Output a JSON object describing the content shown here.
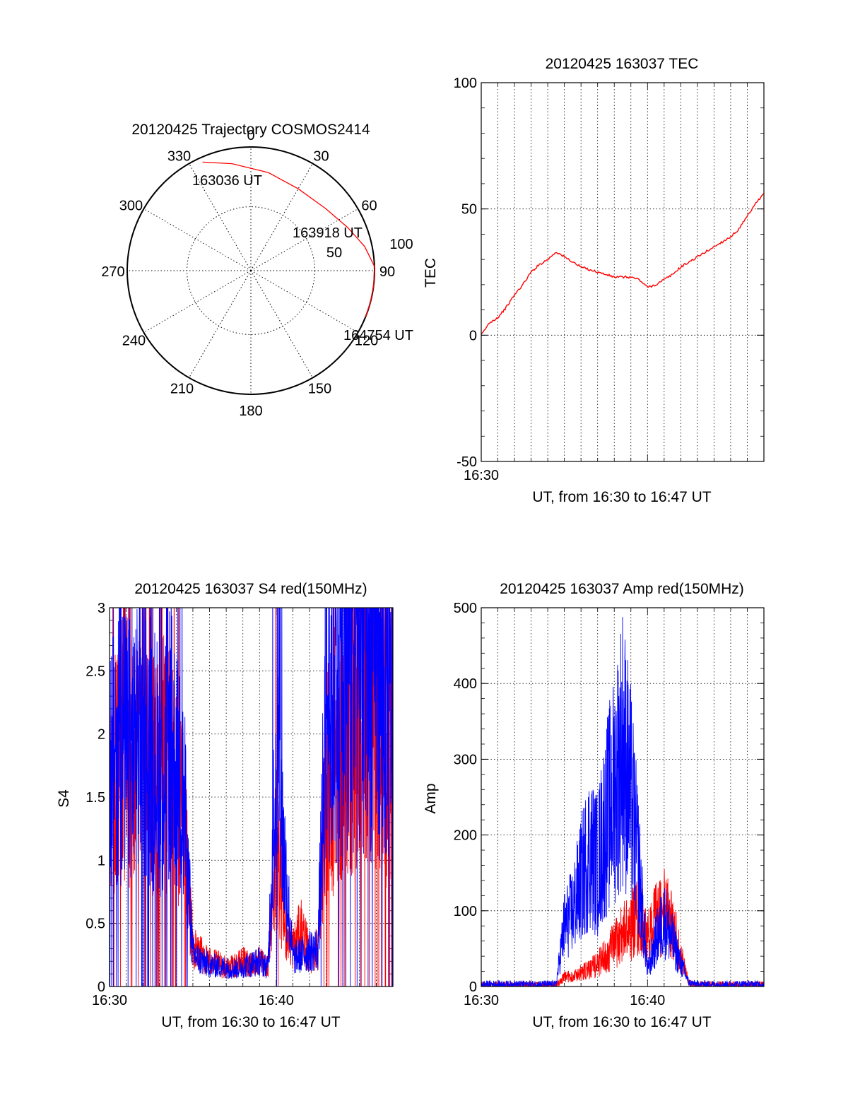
{
  "chart_data": [
    {
      "type": "polar",
      "title": "20120425 Trajectory COSMOS2414",
      "azimuth_labels": [
        "0",
        "30",
        "60",
        "90",
        "120",
        "150",
        "180",
        "210",
        "240",
        "270",
        "300",
        "330"
      ],
      "radial_labels": [
        "50",
        "100"
      ],
      "grid": true,
      "series": [
        {
          "color": "#ff0000",
          "points": [
            {
              "az": 336,
              "zen": 93
            },
            {
              "az": 350,
              "zen": 85
            },
            {
              "az": 10,
              "zen": 78
            },
            {
              "az": 30,
              "zen": 74
            },
            {
              "az": 50,
              "zen": 76
            },
            {
              "az": 66,
              "zen": 83
            },
            {
              "az": 78,
              "zen": 91
            },
            {
              "az": 88,
              "zen": 98
            },
            {
              "az": 97,
              "zen": 104
            },
            {
              "az": 105,
              "zen": 108
            },
            {
              "az": 112,
              "zen": 113
            }
          ]
        }
      ],
      "annotations": [
        {
          "text": "163036 UT",
          "az": 336,
          "zen": 93
        },
        {
          "text": "163918 UT",
          "az": 60,
          "zen": 80
        },
        {
          "text": "164754 UT",
          "az": 112,
          "zen": 113
        }
      ]
    },
    {
      "type": "line",
      "title": "20120425 163037 TEC",
      "xlabel": "UT, from 16:30 to 16:47 UT",
      "ylabel": "TEC",
      "xlim": [
        0,
        17
      ],
      "ylim": [
        -50,
        100
      ],
      "yticks": [
        "-50",
        "0",
        "50",
        "100"
      ],
      "xtick_labels": [
        "16:30"
      ],
      "grid": true,
      "series": [
        {
          "color": "#ff0000",
          "x": [
            0,
            0.5,
            1,
            1.5,
            2,
            2.5,
            3,
            3.5,
            4,
            4.5,
            5,
            5.5,
            6,
            6.5,
            7,
            7.5,
            8,
            8.5,
            9,
            9.5,
            10,
            10.5,
            11,
            11.5,
            12,
            12.5,
            13,
            13.5,
            14,
            14.5,
            15,
            15.5,
            16,
            16.5,
            17
          ],
          "y": [
            0,
            5,
            7,
            11,
            16,
            20,
            25,
            28,
            30,
            33,
            31,
            29,
            27,
            26,
            25,
            24,
            23,
            23,
            23,
            22,
            19,
            20,
            22,
            24,
            27,
            29,
            31,
            33,
            35,
            37,
            39,
            42,
            47,
            52,
            56
          ]
        }
      ]
    },
    {
      "type": "line",
      "title": "20120425 163037 S4 red(150MHz)",
      "xlabel": "UT, from 16:30 to 16:47 UT",
      "ylabel": "S4",
      "xlim": [
        0,
        17
      ],
      "ylim": [
        0,
        3
      ],
      "yticks": [
        "0",
        "0.5",
        "1",
        "1.5",
        "2",
        "2.5",
        "3"
      ],
      "xtick_labels": [
        "16:30",
        "16:40"
      ],
      "grid": true,
      "series": [
        {
          "color": "#ff0000",
          "x": [
            0,
            0.5,
            1,
            1.5,
            2,
            2.5,
            3,
            3.5,
            4,
            4.5,
            5,
            5.5,
            6,
            6.5,
            7,
            7.5,
            8,
            8.5,
            9,
            9.5,
            10,
            10.5,
            11,
            11.5,
            12,
            12.5,
            13,
            13.5,
            14,
            14.5,
            15,
            15.5,
            16,
            16.5,
            17
          ],
          "y": [
            1.5,
            1.8,
            2.0,
            1.7,
            1.9,
            1.6,
            1.9,
            1.8,
            1.5,
            1.2,
            0.3,
            0.25,
            0.2,
            0.18,
            0.15,
            0.16,
            0.2,
            0.18,
            0.2,
            0.15,
            1.2,
            0.5,
            0.3,
            0.45,
            0.25,
            0.3,
            1.6,
            1.8,
            2.0,
            2.1,
            2.2,
            2.3,
            2.0,
            1.9,
            2.0
          ]
        },
        {
          "color": "#0000ff",
          "x": [
            0,
            0.5,
            1,
            1.5,
            2,
            2.5,
            3,
            3.5,
            4,
            4.5,
            5,
            5.5,
            6,
            6.5,
            7,
            7.5,
            8,
            8.5,
            9,
            9.5,
            10,
            10.5,
            11,
            11.5,
            12,
            12.5,
            13,
            13.5,
            14,
            14.5,
            15,
            15.5,
            16,
            16.5,
            17
          ],
          "y": [
            1.8,
            2.0,
            1.9,
            1.8,
            2.1,
            1.9,
            1.7,
            2.0,
            1.7,
            1.4,
            0.25,
            0.2,
            0.17,
            0.16,
            0.15,
            0.14,
            0.16,
            0.18,
            0.2,
            0.15,
            1.8,
            1.0,
            0.22,
            0.25,
            0.28,
            0.3,
            2.2,
            2.4,
            2.5,
            2.6,
            2.5,
            2.4,
            2.6,
            2.3,
            2.2
          ]
        }
      ]
    },
    {
      "type": "line",
      "title": "20120425 163037 Amp red(150MHz)",
      "xlabel": "UT, from 16:30 to 16:47 UT",
      "ylabel": "Amp",
      "xlim": [
        0,
        17
      ],
      "ylim": [
        0,
        500
      ],
      "yticks": [
        "0",
        "100",
        "200",
        "300",
        "400",
        "500"
      ],
      "xtick_labels": [
        "16:30",
        "16:40"
      ],
      "grid": true,
      "series": [
        {
          "color": "#ff0000",
          "x": [
            0,
            0.5,
            1,
            1.5,
            2,
            2.5,
            3,
            3.5,
            4,
            4.5,
            5,
            5.5,
            6,
            6.5,
            7,
            7.5,
            8,
            8.5,
            9,
            9.5,
            10,
            10.5,
            11,
            11.5,
            12,
            12.5,
            13,
            13.5,
            14,
            14.5,
            15,
            15.5,
            16,
            16.5,
            17
          ],
          "y": [
            2,
            2,
            2,
            2,
            2,
            2,
            2,
            2,
            2,
            2,
            12,
            14,
            18,
            22,
            30,
            40,
            55,
            70,
            80,
            95,
            60,
            90,
            100,
            80,
            40,
            5,
            2,
            2,
            2,
            2,
            2,
            2,
            2,
            2,
            2
          ]
        },
        {
          "color": "#0000ff",
          "x": [
            0,
            0.5,
            1,
            1.5,
            2,
            2.5,
            3,
            3.5,
            4,
            4.5,
            5,
            5.5,
            6,
            6.5,
            7,
            7.5,
            8,
            8.5,
            9,
            9.5,
            10,
            10.5,
            11,
            11.5,
            12,
            12.5,
            13,
            13.5,
            14,
            14.5,
            15,
            15.5,
            16,
            16.5,
            17
          ],
          "y": [
            3,
            3,
            3,
            3,
            3,
            3,
            3,
            3,
            3,
            3,
            80,
            100,
            140,
            180,
            160,
            220,
            260,
            320,
            250,
            150,
            20,
            60,
            90,
            60,
            30,
            5,
            3,
            3,
            3,
            3,
            3,
            3,
            3,
            3,
            3
          ]
        }
      ]
    }
  ]
}
